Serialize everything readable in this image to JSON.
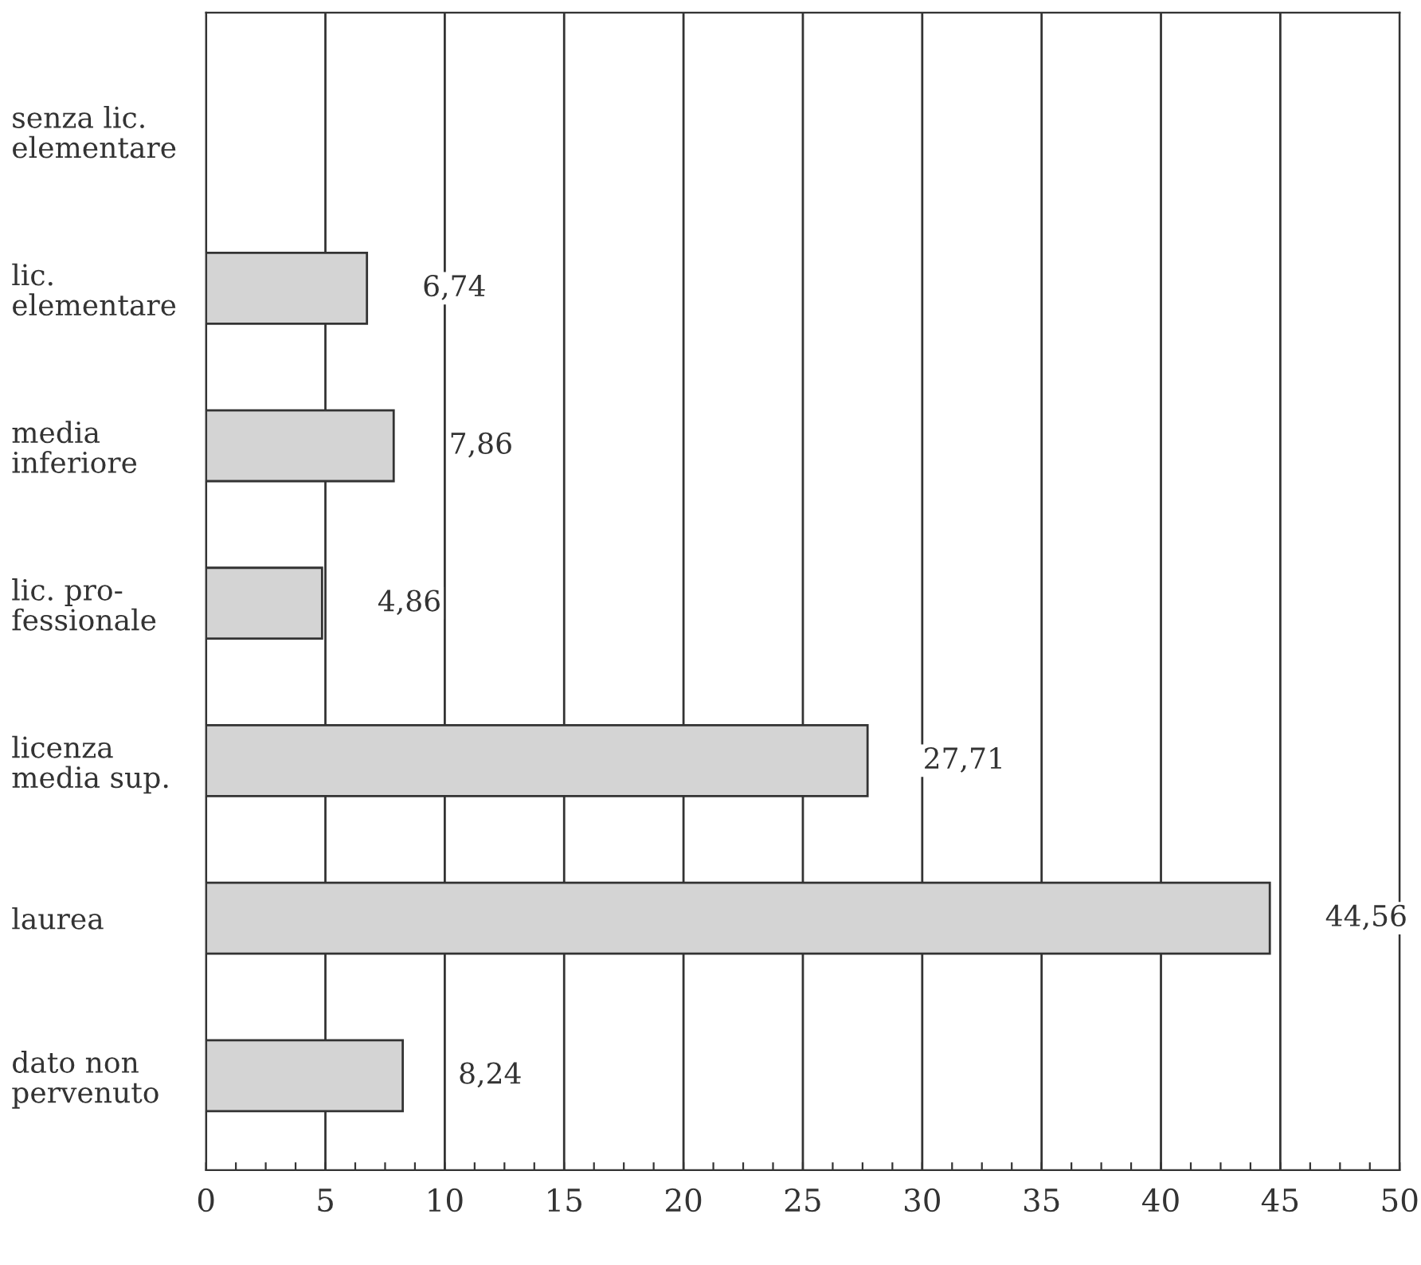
{
  "chart_data": {
    "type": "bar",
    "orientation": "horizontal",
    "categories": [
      "senza lic.\nelementare",
      "lic.\nelementare",
      "media\ninferiore",
      "lic. pro-\nfessionale",
      "licenza\nmedia sup.",
      "laurea",
      "dato non\npervenuto"
    ],
    "values": [
      null,
      6.74,
      7.86,
      4.86,
      27.71,
      44.56,
      8.24
    ],
    "value_labels": [
      null,
      "6,74",
      "7,86",
      "4,86",
      "27,71",
      "44,56",
      "8,24"
    ],
    "color": "#d4d4d4",
    "xlim": [
      0,
      50
    ],
    "xticks": [
      0,
      {
        "value": 1.25,
        "label": null
      },
      {
        "value": 2.5,
        "label": null
      },
      {
        "value": 3.75,
        "label": null
      },
      5,
      {
        "value": 6.25,
        "label": null
      },
      {
        "value": 7.5,
        "label": null
      },
      {
        "value": 8.75,
        "label": null
      },
      10,
      {
        "value": 11.25,
        "label": null
      },
      {
        "value": 12.5,
        "label": null
      },
      {
        "value": 13.75,
        "label": null
      },
      15,
      {
        "value": 16.25,
        "label": null
      },
      {
        "value": 17.5,
        "label": null
      },
      {
        "value": 18.75,
        "label": null
      },
      20,
      {
        "value": 21.25,
        "label": null
      },
      {
        "value": 22.5,
        "label": null
      },
      {
        "value": 23.75,
        "label": null
      },
      25,
      {
        "value": 26.25,
        "label": null
      },
      {
        "value": 27.5,
        "label": null
      },
      {
        "value": 28.75,
        "label": null
      },
      30,
      {
        "value": 31.25,
        "label": null
      },
      {
        "value": 32.5,
        "label": null
      },
      {
        "value": 33.75,
        "label": null
      },
      35,
      {
        "value": 36.25,
        "label": null
      },
      {
        "value": 37.5,
        "label": null
      },
      {
        "value": 38.75,
        "label": null
      },
      40,
      {
        "value": 41.25,
        "label": null
      },
      {
        "value": 42.5,
        "label": null
      },
      {
        "value": 43.75,
        "label": null
      },
      45,
      {
        "value": 46.25,
        "label": null
      },
      {
        "value": 47.5,
        "label": null
      },
      {
        "value": 48.75,
        "label": null
      },
      50
    ],
    "grid": "x"
  }
}
